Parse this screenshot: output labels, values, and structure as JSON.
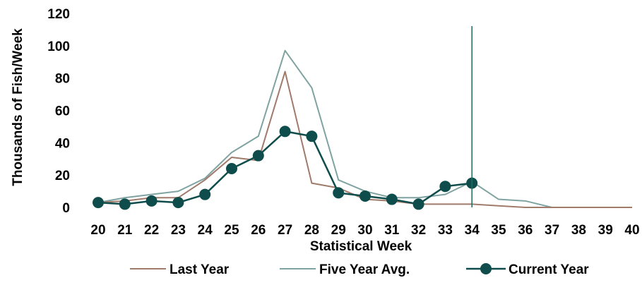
{
  "chart_data": {
    "type": "line",
    "title": "",
    "xlabel": "Statistical Week",
    "ylabel": "Thousands of Fish/Week",
    "x": [
      20,
      21,
      22,
      23,
      24,
      25,
      26,
      27,
      28,
      29,
      30,
      31,
      32,
      33,
      34,
      35,
      36,
      37,
      38,
      39,
      40
    ],
    "x_tick_labels": [
      "20",
      "21",
      "22",
      "23",
      "24",
      "25",
      "26",
      "27",
      "28",
      "29",
      "30",
      "31",
      "32",
      "33",
      "34",
      "35",
      "36",
      "37",
      "38",
      "39",
      "40"
    ],
    "ylim": [
      0,
      120
    ],
    "y_ticks": [
      0,
      20,
      40,
      60,
      80,
      100,
      120
    ],
    "y_tick_labels": [
      "0",
      "20",
      "40",
      "60",
      "80",
      "100",
      "120"
    ],
    "grid": false,
    "legend_position": "bottom",
    "vertical_marker_x": 34,
    "vertical_marker_color": "#1f6b5f",
    "series": [
      {
        "name": "Last Year",
        "color": "#a07a6b",
        "marker": "none",
        "x": [
          20,
          21,
          22,
          23,
          24,
          25,
          26,
          27,
          28,
          29,
          30,
          31,
          32,
          33,
          34,
          35,
          36,
          37,
          38,
          39,
          40
        ],
        "values": [
          3,
          4,
          6,
          6,
          17,
          31,
          29,
          84,
          15,
          12,
          5,
          4,
          2,
          2,
          2,
          1,
          0,
          0,
          0,
          0,
          0
        ]
      },
      {
        "name": "Five Year Avg.",
        "color": "#7fa3a0",
        "marker": "none",
        "x": [
          20,
          21,
          22,
          23,
          24,
          25,
          26,
          27,
          28,
          29,
          30,
          31,
          32,
          33,
          34,
          35,
          36,
          37,
          38,
          39,
          40
        ],
        "values": [
          3,
          6,
          8,
          10,
          18,
          34,
          44,
          97,
          74,
          17,
          10,
          6,
          6,
          8,
          16,
          5,
          4,
          0,
          0,
          0,
          0
        ]
      },
      {
        "name": "Current Year",
        "color": "#0e4d4b",
        "marker": "circle",
        "x": [
          20,
          21,
          22,
          23,
          24,
          25,
          26,
          27,
          28,
          29,
          30,
          31,
          32,
          33,
          34
        ],
        "values": [
          3,
          2,
          4,
          3,
          8,
          24,
          32,
          47,
          44,
          9,
          7,
          5,
          2,
          13,
          15
        ]
      }
    ]
  }
}
